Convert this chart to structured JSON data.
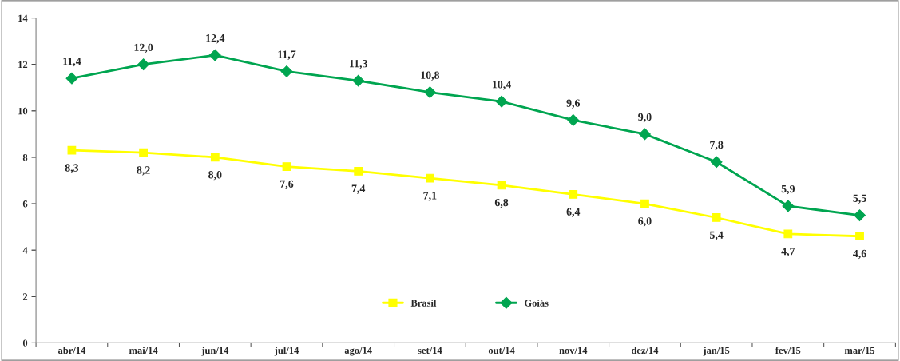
{
  "chart_data": {
    "type": "line",
    "categories": [
      "abr/14",
      "mai/14",
      "jun/14",
      "jul/14",
      "ago/14",
      "set/14",
      "out/14",
      "nov/14",
      "dez/14",
      "jan/15",
      "fev/15",
      "mar/15"
    ],
    "series": [
      {
        "name": "Brasil",
        "color": "#ffff00",
        "marker": "square",
        "values": [
          8.3,
          8.2,
          8.0,
          7.6,
          7.4,
          7.1,
          6.8,
          6.4,
          6.0,
          5.4,
          4.7,
          4.6
        ],
        "value_labels": [
          "8,3",
          "8,2",
          "8,0",
          "7,6",
          "7,4",
          "7,1",
          "6,8",
          "6,4",
          "6,0",
          "5,4",
          "4,7",
          "4,6"
        ]
      },
      {
        "name": "Goiás",
        "color": "#00a550",
        "marker": "diamond",
        "values": [
          11.4,
          12.0,
          12.4,
          11.7,
          11.3,
          10.8,
          10.4,
          9.6,
          9.0,
          7.8,
          5.9,
          5.5
        ],
        "value_labels": [
          "11,4",
          "12,0",
          "12,4",
          "11,7",
          "11,3",
          "10,8",
          "10,4",
          "9,6",
          "9,0",
          "7,8",
          "5,9",
          "5,5"
        ]
      }
    ],
    "ylim": [
      0,
      14
    ],
    "yticks": [
      0,
      2,
      4,
      6,
      8,
      10,
      12,
      14
    ],
    "legend": "bottom",
    "grid": false,
    "line_style": "solid"
  }
}
